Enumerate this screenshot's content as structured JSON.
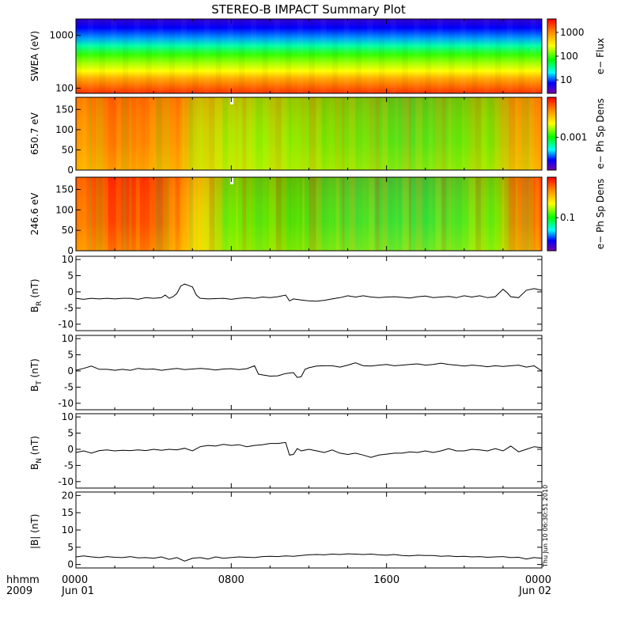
{
  "title": "STEREO-B IMPACT Summary Plot",
  "stamp": "Thu Jun 10 06:30:51 2010",
  "time_axis": {
    "left_labels": [
      "hhmm",
      "2009"
    ],
    "ticks": [
      {
        "hour": 0,
        "label": "0000",
        "sub": "Jun 01"
      },
      {
        "hour": 8,
        "label": "0800",
        "sub": ""
      },
      {
        "hour": 16,
        "label": "1600",
        "sub": ""
      },
      {
        "hour": 24,
        "label": "0000",
        "sub": "Jun 02"
      }
    ]
  },
  "chart_data": [
    {
      "type": "heatmap",
      "name": "swea",
      "ylabel": "SWEA (eV)",
      "yscale": "log",
      "yticks": [
        "1000",
        "100"
      ],
      "colorbar_label": "e− Flux",
      "colorbar_ticks": [
        "1000",
        "100",
        "10"
      ]
    },
    {
      "type": "heatmap",
      "name": "pad650",
      "ylabel": "650.7 eV",
      "ylim": [
        0,
        180
      ],
      "yticks": [
        "150",
        "100",
        "50",
        "0"
      ],
      "colorbar_label": "e− Ph Sp Dens",
      "colorbar_ticks": [
        "0.001"
      ]
    },
    {
      "type": "heatmap",
      "name": "pad246",
      "ylabel": "246.6 eV",
      "ylim": [
        0,
        180
      ],
      "yticks": [
        "150",
        "100",
        "50",
        "0"
      ],
      "colorbar_label": "e− Ph Sp Dens",
      "colorbar_ticks": [
        "0.1"
      ]
    },
    {
      "type": "line",
      "name": "BR",
      "ylabel": "B",
      "ylabel_sub": "R",
      "ylabel_unit": "(nT)",
      "ylim": [
        -12,
        11
      ],
      "yticks": [
        10,
        5,
        0,
        -5,
        -10
      ],
      "x": [
        0,
        0.4,
        0.8,
        1.2,
        1.6,
        2.0,
        2.4,
        2.8,
        3.2,
        3.6,
        4.0,
        4.4,
        4.6,
        4.8,
        5.0,
        5.2,
        5.4,
        5.6,
        5.8,
        6.0,
        6.2,
        6.4,
        6.8,
        7.2,
        7.6,
        8.0,
        8.4,
        8.8,
        9.2,
        9.6,
        10.0,
        10.4,
        10.8,
        11.0,
        11.2,
        11.6,
        12.0,
        12.4,
        12.8,
        13.2,
        13.6,
        14.0,
        14.4,
        14.8,
        15.2,
        15.6,
        16.0,
        16.4,
        16.8,
        17.2,
        17.6,
        18.0,
        18.4,
        18.8,
        19.2,
        19.6,
        20.0,
        20.4,
        20.8,
        21.2,
        21.6,
        22.0,
        22.2,
        22.4,
        22.8,
        23.2,
        23.6,
        24.0
      ],
      "y": [
        -2.0,
        -2.3,
        -2.0,
        -2.2,
        -2.0,
        -2.2,
        -2.0,
        -2.0,
        -2.3,
        -1.8,
        -2.0,
        -1.8,
        -1.0,
        -2.0,
        -1.5,
        -0.5,
        1.8,
        2.4,
        2.0,
        1.5,
        -1.0,
        -2.0,
        -2.2,
        -2.1,
        -2.0,
        -2.3,
        -2.0,
        -1.8,
        -2.0,
        -1.6,
        -1.8,
        -1.5,
        -1.0,
        -2.8,
        -2.2,
        -2.5,
        -2.8,
        -2.9,
        -2.6,
        -2.2,
        -1.8,
        -1.2,
        -1.6,
        -1.2,
        -1.6,
        -1.8,
        -1.6,
        -1.5,
        -1.7,
        -1.9,
        -1.5,
        -1.3,
        -1.8,
        -1.6,
        -1.4,
        -1.8,
        -1.2,
        -1.6,
        -1.2,
        -1.8,
        -1.5,
        0.8,
        -0.2,
        -1.5,
        -1.8,
        0.5,
        1.0,
        0.5
      ]
    },
    {
      "type": "line",
      "name": "BT",
      "ylabel": "B",
      "ylabel_sub": "T",
      "ylabel_unit": "(nT)",
      "ylim": [
        -12,
        11
      ],
      "yticks": [
        10,
        5,
        0,
        -5,
        -10
      ],
      "x": [
        0,
        0.4,
        0.8,
        1.2,
        1.6,
        2.0,
        2.4,
        2.8,
        3.2,
        3.6,
        4.0,
        4.4,
        4.8,
        5.2,
        5.6,
        6.0,
        6.4,
        6.8,
        7.2,
        7.6,
        8.0,
        8.4,
        8.8,
        9.2,
        9.4,
        9.6,
        10.0,
        10.4,
        10.8,
        11.2,
        11.4,
        11.6,
        11.8,
        12.0,
        12.4,
        12.8,
        13.2,
        13.6,
        14.0,
        14.4,
        14.8,
        15.2,
        15.6,
        16.0,
        16.4,
        16.8,
        17.2,
        17.6,
        18.0,
        18.4,
        18.8,
        19.2,
        19.6,
        20.0,
        20.4,
        20.8,
        21.2,
        21.6,
        22.0,
        22.4,
        22.8,
        23.2,
        23.6,
        24.0
      ],
      "y": [
        0.2,
        0.8,
        1.5,
        0.5,
        0.5,
        0.2,
        0.5,
        0.2,
        0.8,
        0.5,
        0.6,
        0.2,
        0.5,
        0.8,
        0.4,
        0.6,
        0.8,
        0.6,
        0.3,
        0.6,
        0.7,
        0.4,
        0.7,
        1.6,
        -1.0,
        -1.2,
        -1.6,
        -1.5,
        -0.8,
        -0.5,
        -2.0,
        -1.8,
        0.5,
        1.0,
        1.5,
        1.6,
        1.6,
        1.2,
        1.8,
        2.5,
        1.6,
        1.5,
        1.8,
        2.0,
        1.6,
        1.8,
        2.0,
        2.2,
        1.8,
        2.0,
        2.4,
        2.0,
        1.8,
        1.5,
        1.8,
        1.6,
        1.3,
        1.6,
        1.4,
        1.6,
        1.8,
        1.2,
        1.6,
        0.0
      ]
    },
    {
      "type": "line",
      "name": "BN",
      "ylabel": "B",
      "ylabel_sub": "N",
      "ylabel_unit": "(nT)",
      "ylim": [
        -12,
        11
      ],
      "yticks": [
        10,
        5,
        0,
        -5,
        -10
      ],
      "x": [
        0,
        0.4,
        0.8,
        1.2,
        1.6,
        2.0,
        2.4,
        2.8,
        3.2,
        3.6,
        4.0,
        4.4,
        4.8,
        5.2,
        5.6,
        6.0,
        6.4,
        6.8,
        7.2,
        7.6,
        8.0,
        8.4,
        8.8,
        9.2,
        9.6,
        10.0,
        10.4,
        10.8,
        11.0,
        11.2,
        11.4,
        11.6,
        12.0,
        12.4,
        12.8,
        13.2,
        13.6,
        14.0,
        14.4,
        14.8,
        15.2,
        15.6,
        16.0,
        16.4,
        16.8,
        17.2,
        17.6,
        18.0,
        18.4,
        18.8,
        19.2,
        19.6,
        20.0,
        20.4,
        20.8,
        21.2,
        21.6,
        22.0,
        22.4,
        22.8,
        23.2,
        23.6,
        24.0
      ],
      "y": [
        -1.0,
        -0.5,
        -1.2,
        -0.4,
        -0.2,
        -0.5,
        -0.3,
        -0.4,
        -0.2,
        -0.4,
        0.0,
        -0.3,
        0.0,
        -0.2,
        0.3,
        -0.5,
        0.8,
        1.2,
        1.0,
        1.5,
        1.2,
        1.4,
        0.8,
        1.2,
        1.4,
        1.8,
        1.8,
        2.1,
        -1.8,
        -1.6,
        0.2,
        -0.5,
        0.0,
        -0.5,
        -1.0,
        -0.2,
        -1.2,
        -1.6,
        -1.2,
        -1.8,
        -2.5,
        -1.8,
        -1.5,
        -1.2,
        -1.2,
        -0.8,
        -1.0,
        -0.5,
        -1.0,
        -0.5,
        0.2,
        -0.5,
        -0.5,
        0.0,
        -0.2,
        -0.5,
        0.2,
        -0.5,
        1.0,
        -0.8,
        0.0,
        0.8,
        0.5
      ]
    },
    {
      "type": "line",
      "name": "Bmag",
      "ylabel": "|B| (nT)",
      "ylim": [
        -1,
        21
      ],
      "yticks": [
        20,
        15,
        10,
        5,
        0
      ],
      "x": [
        0,
        0.4,
        0.8,
        1.2,
        1.6,
        2.0,
        2.4,
        2.8,
        3.2,
        3.6,
        4.0,
        4.4,
        4.8,
        5.2,
        5.6,
        6.0,
        6.4,
        6.8,
        7.2,
        7.6,
        8.0,
        8.4,
        8.8,
        9.2,
        9.6,
        10.0,
        10.4,
        10.8,
        11.2,
        11.6,
        12.0,
        12.4,
        12.8,
        13.2,
        13.6,
        14.0,
        14.4,
        14.8,
        15.2,
        15.6,
        16.0,
        16.4,
        16.8,
        17.2,
        17.6,
        18.0,
        18.4,
        18.8,
        19.2,
        19.6,
        20.0,
        20.4,
        20.8,
        21.2,
        21.6,
        22.0,
        22.4,
        22.8,
        23.2,
        23.6,
        24.0
      ],
      "y": [
        2.2,
        2.5,
        2.2,
        2.0,
        2.3,
        2.1,
        2.0,
        2.3,
        1.9,
        2.0,
        1.8,
        2.2,
        1.5,
        2.0,
        1.0,
        1.8,
        2.0,
        1.6,
        2.2,
        1.8,
        2.0,
        2.2,
        2.1,
        2.0,
        2.3,
        2.4,
        2.3,
        2.5,
        2.4,
        2.6,
        2.8,
        2.9,
        2.8,
        3.0,
        2.9,
        3.1,
        3.0,
        2.9,
        3.0,
        2.8,
        2.7,
        2.9,
        2.6,
        2.5,
        2.7,
        2.6,
        2.6,
        2.4,
        2.5,
        2.3,
        2.4,
        2.2,
        2.3,
        2.1,
        2.2,
        2.3,
        2.0,
        2.1,
        1.6,
        2.0,
        1.8
      ]
    }
  ]
}
